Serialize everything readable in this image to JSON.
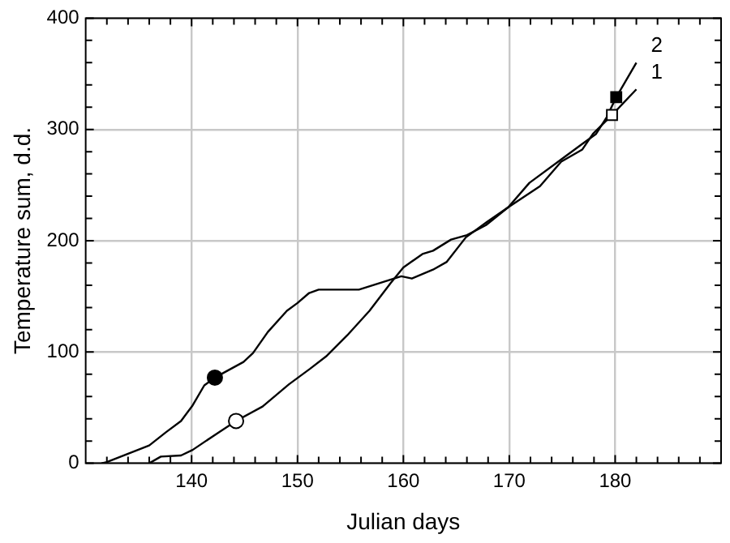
{
  "chart_data": {
    "type": "line",
    "xlabel": "Julian days",
    "ylabel": "Temperature sum, d.d.",
    "xlim": [
      130,
      190
    ],
    "xticks": [
      {
        "value": 132,
        "label": null
      },
      {
        "value": 134,
        "label": null
      },
      {
        "value": 136,
        "label": null
      },
      {
        "value": 138,
        "label": null
      },
      140,
      {
        "value": 142,
        "label": null
      },
      {
        "value": 144,
        "label": null
      },
      {
        "value": 146,
        "label": null
      },
      {
        "value": 148,
        "label": null
      },
      150,
      {
        "value": 152,
        "label": null
      },
      {
        "value": 154,
        "label": null
      },
      {
        "value": 156,
        "label": null
      },
      {
        "value": 158,
        "label": null
      },
      160,
      {
        "value": 162,
        "label": null
      },
      {
        "value": 164,
        "label": null
      },
      {
        "value": 166,
        "label": null
      },
      {
        "value": 168,
        "label": null
      },
      170,
      {
        "value": 172,
        "label": null
      },
      {
        "value": 174,
        "label": null
      },
      {
        "value": 176,
        "label": null
      },
      {
        "value": 178,
        "label": null
      },
      180,
      {
        "value": 182,
        "label": null
      },
      {
        "value": 184,
        "label": null
      },
      {
        "value": 186,
        "label": null
      },
      {
        "value": 188,
        "label": null
      }
    ],
    "ylim": [
      0,
      400
    ],
    "yticks": [
      0,
      {
        "value": 20,
        "label": null
      },
      {
        "value": 40,
        "label": null
      },
      {
        "value": 60,
        "label": null
      },
      {
        "value": 80,
        "label": null
      },
      100,
      {
        "value": 120,
        "label": null
      },
      {
        "value": 140,
        "label": null
      },
      {
        "value": 160,
        "label": null
      },
      {
        "value": 180,
        "label": null
      },
      200,
      {
        "value": 220,
        "label": null
      },
      {
        "value": 240,
        "label": null
      },
      {
        "value": 260,
        "label": null
      },
      {
        "value": 280,
        "label": null
      },
      300,
      {
        "value": 320,
        "label": null
      },
      {
        "value": 340,
        "label": null
      },
      {
        "value": 360,
        "label": null
      },
      {
        "value": 380,
        "label": null
      },
      400
    ],
    "grid": true,
    "legend": "top right",
    "marker": "none",
    "line_style": "solid",
    "series": [
      {
        "name": "1",
        "color": "#000000",
        "x": [
          136,
          137.1,
          139,
          140.1,
          142.6,
          144.2,
          146.7,
          149.2,
          151.2,
          152.7,
          154.7,
          156.8,
          158.8,
          160,
          161.8,
          162.8,
          164.5,
          166,
          167.8,
          169.9,
          172.9,
          174.9,
          176.9,
          177.9,
          179.7,
          182
        ],
        "values": [
          0,
          6,
          7,
          12,
          28,
          38,
          51,
          71,
          85,
          96,
          115,
          137,
          162,
          176,
          188,
          191,
          201,
          205,
          214,
          230,
          249,
          271,
          282,
          296,
          313,
          336
        ]
      },
      {
        "name": "2",
        "color": "#000000",
        "x": [
          131.5,
          132,
          136,
          137.6,
          139,
          140.1,
          141.2,
          142.2,
          144.9,
          145.8,
          147.2,
          149,
          150,
          151.1,
          152,
          155.8,
          157.8,
          159.8,
          160.8,
          162.8,
          164.1,
          165.9,
          167.9,
          169.9,
          171.9,
          174.9,
          176.9,
          178.2,
          179.2,
          180.1,
          182
        ],
        "values": [
          0,
          1,
          16,
          28,
          38,
          52,
          70,
          77,
          91,
          99,
          118,
          137,
          144,
          153,
          156,
          156,
          162,
          168,
          166,
          174,
          181,
          203,
          217,
          230,
          252,
          273,
          287,
          296,
          311,
          329,
          360
        ]
      },
      {
        "type": "scatter",
        "marker": "circle",
        "color": "#ffffff",
        "x": [
          144.2
        ],
        "values": [
          38
        ]
      },
      {
        "type": "scatter",
        "marker": "square",
        "color": "#ffffff",
        "x": [
          179.7
        ],
        "values": [
          313
        ]
      },
      {
        "type": "scatter",
        "marker": "circle",
        "color": "#000000",
        "x": [
          142.2
        ],
        "values": [
          77
        ]
      },
      {
        "type": "scatter",
        "marker": "square",
        "color": "#000000",
        "x": [
          180.1
        ],
        "values": [
          329
        ]
      }
    ]
  }
}
